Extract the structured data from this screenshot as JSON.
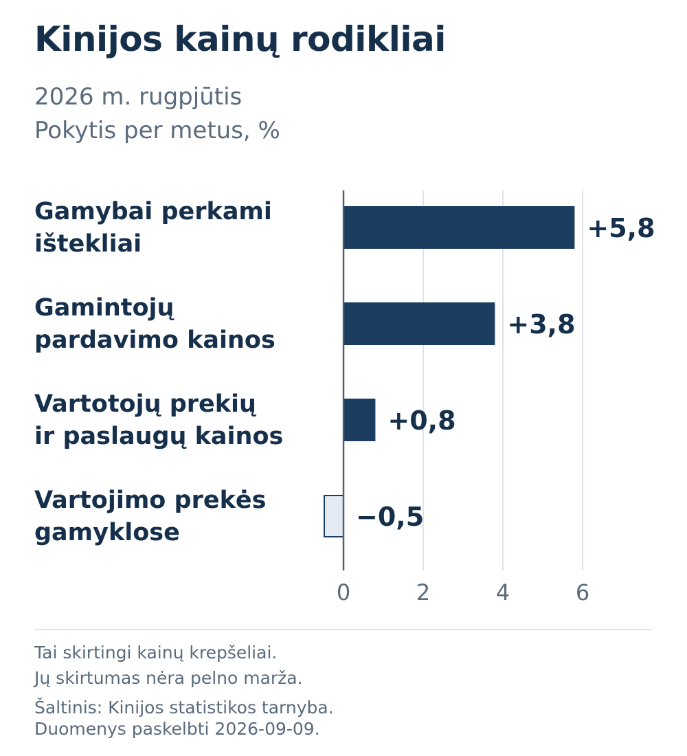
{
  "header": {
    "title": "Kinijos kainų rodikliai",
    "subtitle_line1": "2026 m. rugpjūtis",
    "subtitle_line2": "Pokytis per metus, %"
  },
  "chart_data": {
    "type": "bar",
    "orientation": "horizontal",
    "categories": [
      [
        "Gamybai perkami",
        "ištekliai"
      ],
      [
        "Gamintojų",
        "pardavimo kainos"
      ],
      [
        "Vartotojų prekių",
        "ir paslaugų kainos"
      ],
      [
        "Vartojimo prekės",
        "gamyklose"
      ]
    ],
    "values": [
      5.8,
      3.8,
      0.8,
      -0.5
    ],
    "value_labels": [
      "+5,8",
      "+3,8",
      "+0,8",
      "−0,5"
    ],
    "xticks": [
      0,
      2,
      4,
      6
    ],
    "xlim": [
      -0.5,
      7.6
    ],
    "grid": true,
    "colors": {
      "positive": "#1b3d5f",
      "negative_fill": "#e3eaf2",
      "negative_stroke": "#1b3d5f",
      "grid": "#dfe3e8",
      "axis": "#52606e",
      "tick_text": "#5a6b7d",
      "label_text": "#16304c"
    }
  },
  "footer": {
    "note_line1": "Tai skirtingi kainų krepšeliai.",
    "note_line2": "Jų skirtumas nėra pelno marža.",
    "source_line1": "Šaltinis: Kinijos statistikos tarnyba.",
    "source_line2": "Duomenys paskelbti 2026-09-09."
  }
}
